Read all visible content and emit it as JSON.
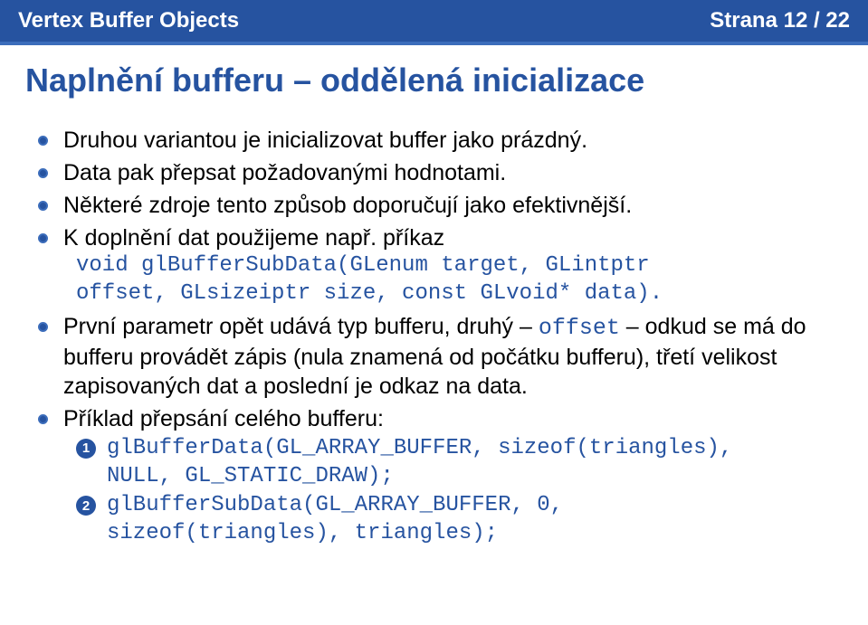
{
  "header": {
    "left": "Vertex Buffer Objects",
    "right": "Strana 12 / 22"
  },
  "title": "Naplnění bufferu – oddělená inicializace",
  "bullets": {
    "b1": "Druhou variantou je inicializovat buffer jako prázdný.",
    "b2": "Data pak přepsat požadovanými hodnotami.",
    "b3": "Některé zdroje tento způsob doporučují jako efektivnější.",
    "b4_pre": "K doplnění dat použijeme např. příkaz",
    "b4_code1": "void glBufferSubData(GLenum target, GLintptr",
    "b4_code2": "offset, GLsizeiptr size, const GLvoid* data).",
    "b5_a": "První parametr opět udává typ bufferu, druhý – ",
    "b5_code": "offset",
    "b5_b": " – odkud se má do bufferu provádět zápis (nula znamená od počátku bufferu), třetí velikost zapisovaných dat a poslední je odkaz na data.",
    "b6": "Příklad přepsání celého bufferu:",
    "n1a": "glBufferData(GL_ARRAY_BUFFER, sizeof(triangles),",
    "n1b": "NULL, GL_STATIC_DRAW);",
    "n2a": "glBufferSubData(GL_ARRAY_BUFFER, 0,",
    "n2b": "sizeof(triangles), triangles);"
  },
  "numbers": {
    "one": "1",
    "two": "2"
  },
  "colors": {
    "accent": "#2653a0",
    "header_border": "#3c6dbb",
    "text": "#000000",
    "bg": "#ffffff"
  }
}
